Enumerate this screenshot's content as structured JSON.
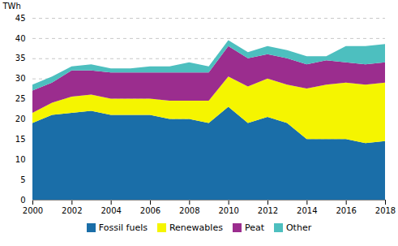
{
  "chart_data": {
    "type": "area",
    "stacked": true,
    "x": [
      2000,
      2001,
      2002,
      2003,
      2004,
      2005,
      2006,
      2007,
      2008,
      2009,
      2010,
      2011,
      2012,
      2013,
      2014,
      2015,
      2016,
      2017,
      2018
    ],
    "series": [
      {
        "name": "Fossil fuels",
        "color": "#1a6ea8",
        "values": [
          19,
          21,
          21.5,
          22,
          21,
          21,
          21,
          20,
          20,
          19,
          23,
          19,
          20.5,
          19,
          15,
          15,
          15,
          14,
          14.5
        ]
      },
      {
        "name": "Renewables",
        "color": "#f5f500",
        "values": [
          2.5,
          3,
          4,
          4,
          4,
          4,
          4,
          4.5,
          4.5,
          5.5,
          7.5,
          9,
          9.5,
          9.5,
          12.5,
          13.5,
          14,
          14.5,
          14.5
        ]
      },
      {
        "name": "Peat",
        "color": "#9b2d8e",
        "values": [
          5.5,
          5,
          6.5,
          6,
          6.5,
          6.5,
          6.5,
          7,
          7,
          7,
          7.5,
          7,
          6,
          6.5,
          6,
          6,
          5,
          5,
          5
        ]
      },
      {
        "name": "Other",
        "color": "#4dbfbf",
        "values": [
          1.5,
          1.5,
          1,
          1.5,
          1,
          1,
          1.5,
          1.5,
          2.5,
          1.5,
          1.5,
          1.5,
          2,
          2,
          2,
          1,
          4,
          4.5,
          4.5
        ]
      }
    ],
    "ylabel": "TWh",
    "ylim": [
      0,
      45
    ],
    "yticks": [
      0,
      5,
      10,
      15,
      20,
      25,
      30,
      35,
      40,
      45
    ],
    "xlim": [
      2000,
      2018
    ],
    "xticks": [
      2000,
      2002,
      2004,
      2006,
      2008,
      2010,
      2012,
      2014,
      2016,
      2018
    ],
    "grid": true,
    "legend": "bottom"
  }
}
